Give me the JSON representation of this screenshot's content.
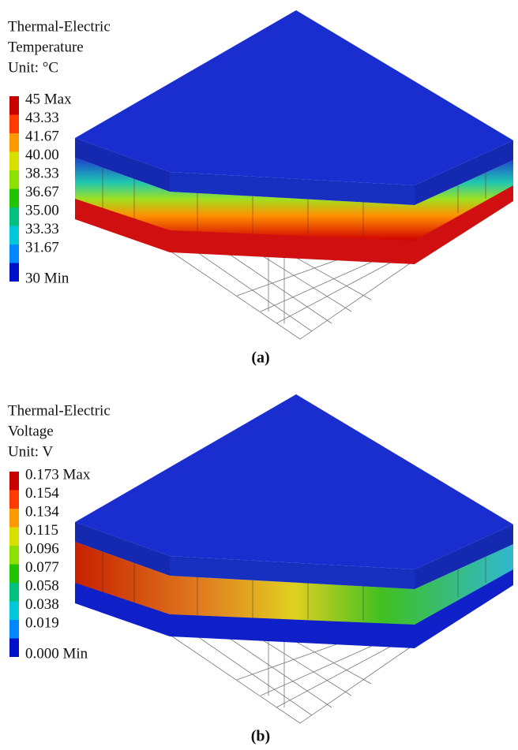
{
  "panels": [
    {
      "title_lines": [
        "Thermal-Electric",
        "Temperature",
        "Unit: °C"
      ],
      "legend_labels": [
        "45 Max",
        "43.33",
        "41.67",
        "40.00",
        "38.33",
        "36.67",
        "35.00",
        "33.33",
        "31.67",
        "30 Min"
      ],
      "caption": "(a)"
    },
    {
      "title_lines": [
        "Thermal-Electric",
        "Voltage",
        "Unit: V"
      ],
      "legend_labels": [
        "0.173 Max",
        "0.154",
        "0.134",
        "0.115",
        "0.096",
        "0.077",
        "0.058",
        "0.038",
        "0.019",
        "0.000 Min"
      ],
      "caption": "(b)"
    }
  ]
}
